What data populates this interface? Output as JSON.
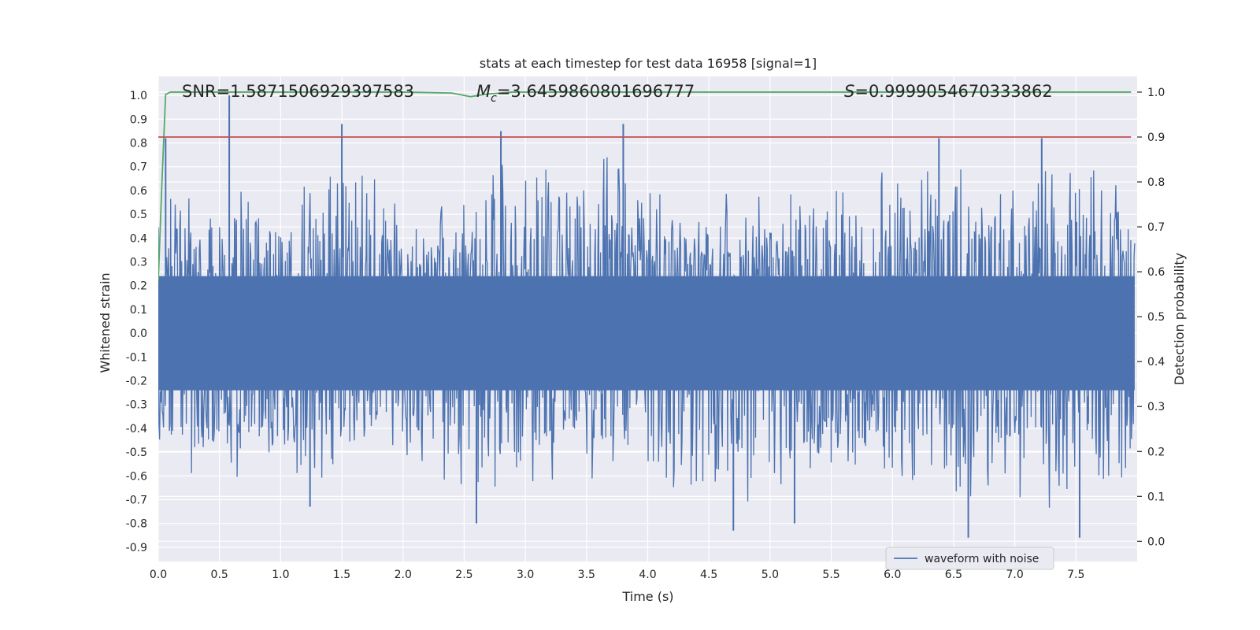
{
  "chart_data": {
    "type": "line",
    "title": "stats at each timestep for test data 16958 [signal=1]",
    "xlabel": "Time (s)",
    "ylabel": "Whitened strain",
    "y2label": "Detection probability",
    "xlim": [
      0.0,
      8.0
    ],
    "ylim": [
      -0.96,
      1.08
    ],
    "y2lim": [
      -0.045,
      1.035
    ],
    "x_ticks": [
      "0.0",
      "0.5",
      "1.0",
      "1.5",
      "2.0",
      "2.5",
      "3.0",
      "3.5",
      "4.0",
      "4.5",
      "5.0",
      "5.5",
      "6.0",
      "6.5",
      "7.0",
      "7.5"
    ],
    "y_ticks": [
      "1.0",
      "0.9",
      "0.8",
      "0.7",
      "0.6",
      "0.5",
      "0.4",
      "0.3",
      "0.2",
      "0.1",
      "0.0",
      "-0.1",
      "-0.2",
      "-0.3",
      "-0.4",
      "-0.5",
      "-0.6",
      "-0.7",
      "-0.8",
      "-0.9"
    ],
    "y2_ticks": [
      "1.0",
      "0.9",
      "0.8",
      "0.7",
      "0.6",
      "0.5",
      "0.4",
      "0.3",
      "0.2",
      "0.1",
      "0.0"
    ],
    "grid": true,
    "annotations": {
      "snr": "SNR=1.5871506929397583",
      "mc": "=3.6459860801696777",
      "mc_symbol": "M",
      "mc_subscript": "c",
      "s_symbol": "S",
      "s": "=0.9999054670333862"
    },
    "legend": {
      "placement": "lower-right",
      "entries": [
        "waveform with noise"
      ]
    },
    "series": [
      {
        "name": "waveform with noise",
        "axis": "left",
        "color": "#4c72b0",
        "envelope_upper": [
          [
            0.0,
            0.58
          ],
          [
            0.25,
            0.6
          ],
          [
            0.5,
            0.7
          ],
          [
            1.0,
            0.6
          ],
          [
            1.5,
            0.88
          ],
          [
            2.0,
            0.65
          ],
          [
            2.5,
            0.55
          ],
          [
            2.8,
            0.85
          ],
          [
            3.0,
            0.72
          ],
          [
            3.5,
            0.8
          ],
          [
            3.8,
            0.88
          ],
          [
            4.0,
            0.75
          ],
          [
            4.5,
            0.62
          ],
          [
            5.0,
            0.6
          ],
          [
            5.5,
            0.62
          ],
          [
            6.0,
            0.75
          ],
          [
            6.5,
            0.82
          ],
          [
            7.0,
            0.68
          ],
          [
            7.5,
            0.8
          ],
          [
            8.0,
            0.6
          ]
        ],
        "envelope_lower": [
          [
            0.0,
            -0.58
          ],
          [
            0.5,
            -0.65
          ],
          [
            1.0,
            -0.6
          ],
          [
            1.2,
            -0.73
          ],
          [
            1.5,
            -0.6
          ],
          [
            2.0,
            -0.55
          ],
          [
            2.5,
            -0.7
          ],
          [
            2.8,
            -0.8
          ],
          [
            3.0,
            -0.7
          ],
          [
            3.5,
            -0.65
          ],
          [
            4.0,
            -0.7
          ],
          [
            4.7,
            -0.83
          ],
          [
            5.0,
            -0.7
          ],
          [
            5.2,
            -0.8
          ],
          [
            5.5,
            -0.6
          ],
          [
            6.0,
            -0.65
          ],
          [
            6.6,
            -0.86
          ],
          [
            7.0,
            -0.7
          ],
          [
            7.2,
            -0.82
          ],
          [
            7.5,
            -0.86
          ],
          [
            8.0,
            -0.7
          ]
        ],
        "notable_peaks": [
          [
            0.06,
            0.82
          ],
          [
            0.58,
            1.0
          ],
          [
            1.5,
            0.88
          ],
          [
            2.8,
            0.85
          ],
          [
            3.8,
            0.88
          ],
          [
            6.38,
            0.82
          ],
          [
            7.22,
            0.82
          ]
        ],
        "notable_troughs": [
          [
            1.24,
            -0.73
          ],
          [
            2.6,
            -0.8
          ],
          [
            4.7,
            -0.83
          ],
          [
            5.2,
            -0.8
          ],
          [
            6.62,
            -0.86
          ],
          [
            7.53,
            -0.86
          ]
        ]
      },
      {
        "name": "",
        "axis": "right",
        "color": "#55a868",
        "x": [
          0.0,
          0.03,
          0.06,
          0.1,
          0.2,
          1.0,
          2.0,
          2.4,
          2.55,
          2.7,
          2.9,
          3.2,
          5.0,
          6.0,
          7.0,
          7.95
        ],
        "y": [
          0.58,
          0.8,
          0.995,
          1.0,
          1.0,
          1.0,
          1.0,
          0.998,
          0.99,
          0.996,
          1.0,
          1.0,
          1.0,
          1.0,
          1.0,
          1.0
        ]
      },
      {
        "name": "",
        "axis": "right",
        "color": "#c44e52",
        "x": [
          0.0,
          7.95
        ],
        "y": [
          0.9,
          0.9
        ]
      }
    ]
  }
}
